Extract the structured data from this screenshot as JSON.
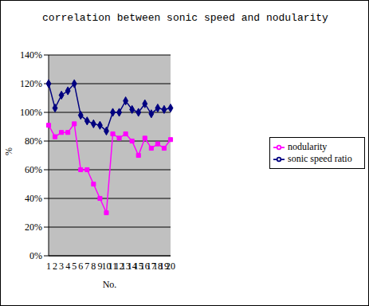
{
  "chart_data": {
    "type": "line",
    "title": "correlation between sonic speed and nodularity",
    "x_label": "No.",
    "y_label": "%",
    "categories": [
      "1",
      "2",
      "3",
      "4",
      "5",
      "6",
      "7",
      "8",
      "9",
      "10",
      "11",
      "12",
      "13",
      "14",
      "15",
      "16",
      "17",
      "18",
      "19",
      "20"
    ],
    "series": [
      {
        "name": "sonic speed ratio",
        "color": "#000080",
        "marker": "diamond",
        "values": [
          120,
          103,
          112,
          115,
          120,
          98,
          94,
          92,
          91,
          87,
          100,
          100,
          108,
          102,
          100,
          106,
          99,
          103,
          102,
          103
        ]
      },
      {
        "name": "nodularity",
        "color": "#ff00ff",
        "marker": "square",
        "values": [
          91,
          83,
          86,
          86,
          92,
          60,
          60,
          50,
          40,
          30,
          85,
          82,
          85,
          80,
          70,
          82,
          75,
          78,
          75,
          81
        ]
      }
    ],
    "ylim": [
      0,
      140
    ],
    "yticks": [
      {
        "value": 0,
        "label": "0%"
      },
      {
        "value": 20,
        "label": "20%"
      },
      {
        "value": 40,
        "label": "40%"
      },
      {
        "value": 60,
        "label": "60%"
      },
      {
        "value": 80,
        "label": "80%"
      },
      {
        "value": 100,
        "label": "100%"
      },
      {
        "value": 120,
        "label": "120%"
      },
      {
        "value": 140,
        "label": "140%"
      }
    ],
    "grid": true,
    "legend": "right"
  }
}
